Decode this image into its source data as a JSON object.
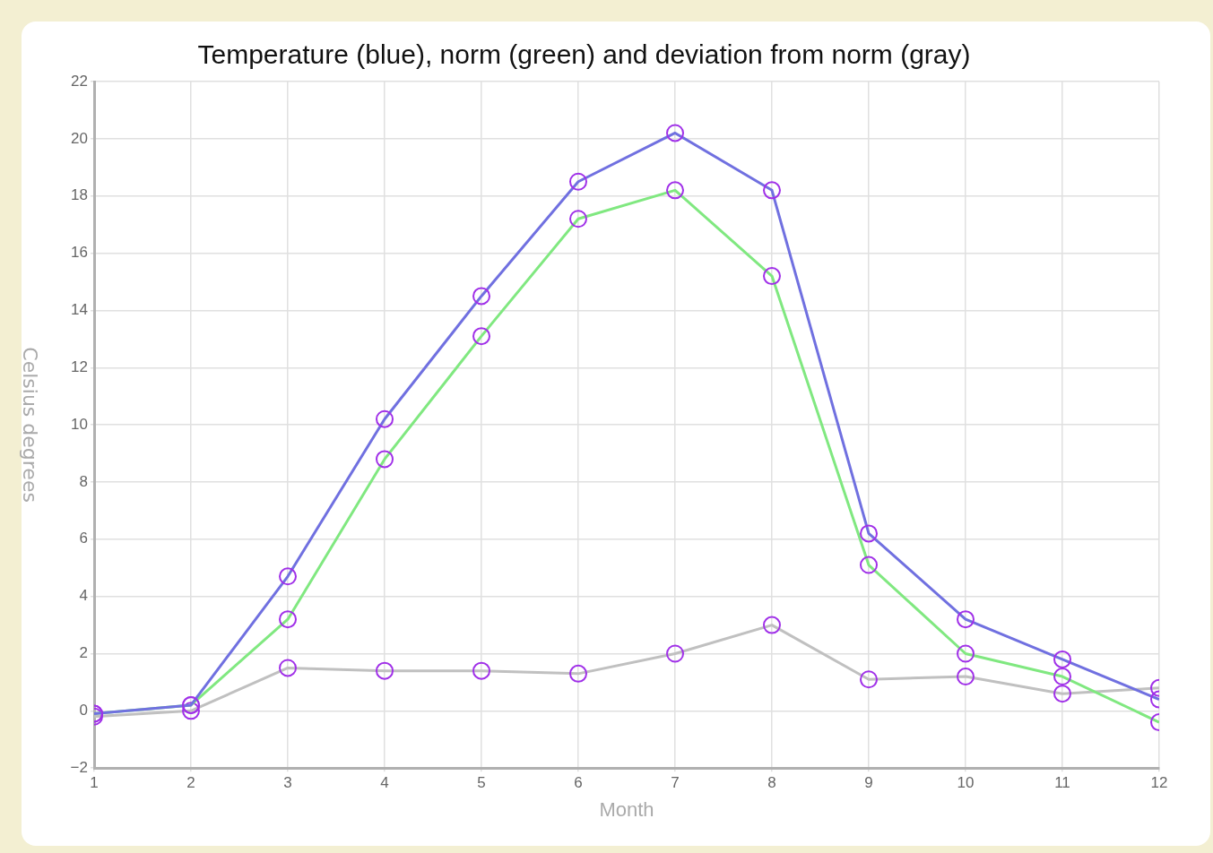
{
  "chart_data": {
    "type": "line",
    "title": "Temperature (blue), norm (green) and deviation from norm (gray)",
    "xlabel": "Month",
    "ylabel": "Celsius degrees",
    "x": [
      1,
      2,
      3,
      4,
      5,
      6,
      7,
      8,
      9,
      10,
      11,
      12
    ],
    "series": [
      {
        "color": "#7070e0",
        "values": [
          -0.1,
          0.2,
          4.7,
          10.2,
          14.5,
          18.5,
          20.2,
          18.2,
          6.2,
          3.2,
          1.8,
          0.4
        ]
      },
      {
        "color": "#80e880",
        "values": [
          -0.1,
          0.2,
          3.2,
          8.8,
          13.1,
          17.2,
          18.2,
          15.2,
          5.1,
          2.0,
          1.2,
          -0.4
        ]
      },
      {
        "color": "#c0c0c0",
        "values": [
          -0.2,
          0.0,
          1.5,
          1.4,
          1.4,
          1.3,
          2.0,
          3.0,
          1.1,
          1.2,
          0.6,
          0.8
        ]
      }
    ],
    "xlim": [
      1,
      12
    ],
    "xticks": [
      1,
      2,
      3,
      4,
      5,
      6,
      7,
      8,
      9,
      10,
      11,
      12
    ],
    "ylim": [
      -2,
      22
    ],
    "yticks": [
      {
        "value": -2,
        "label": "−2"
      },
      0,
      2,
      4,
      6,
      8,
      10,
      12,
      14,
      16,
      18,
      20,
      22
    ],
    "grid": true,
    "legend": false,
    "marker": "circle",
    "line_style": "solid"
  }
}
